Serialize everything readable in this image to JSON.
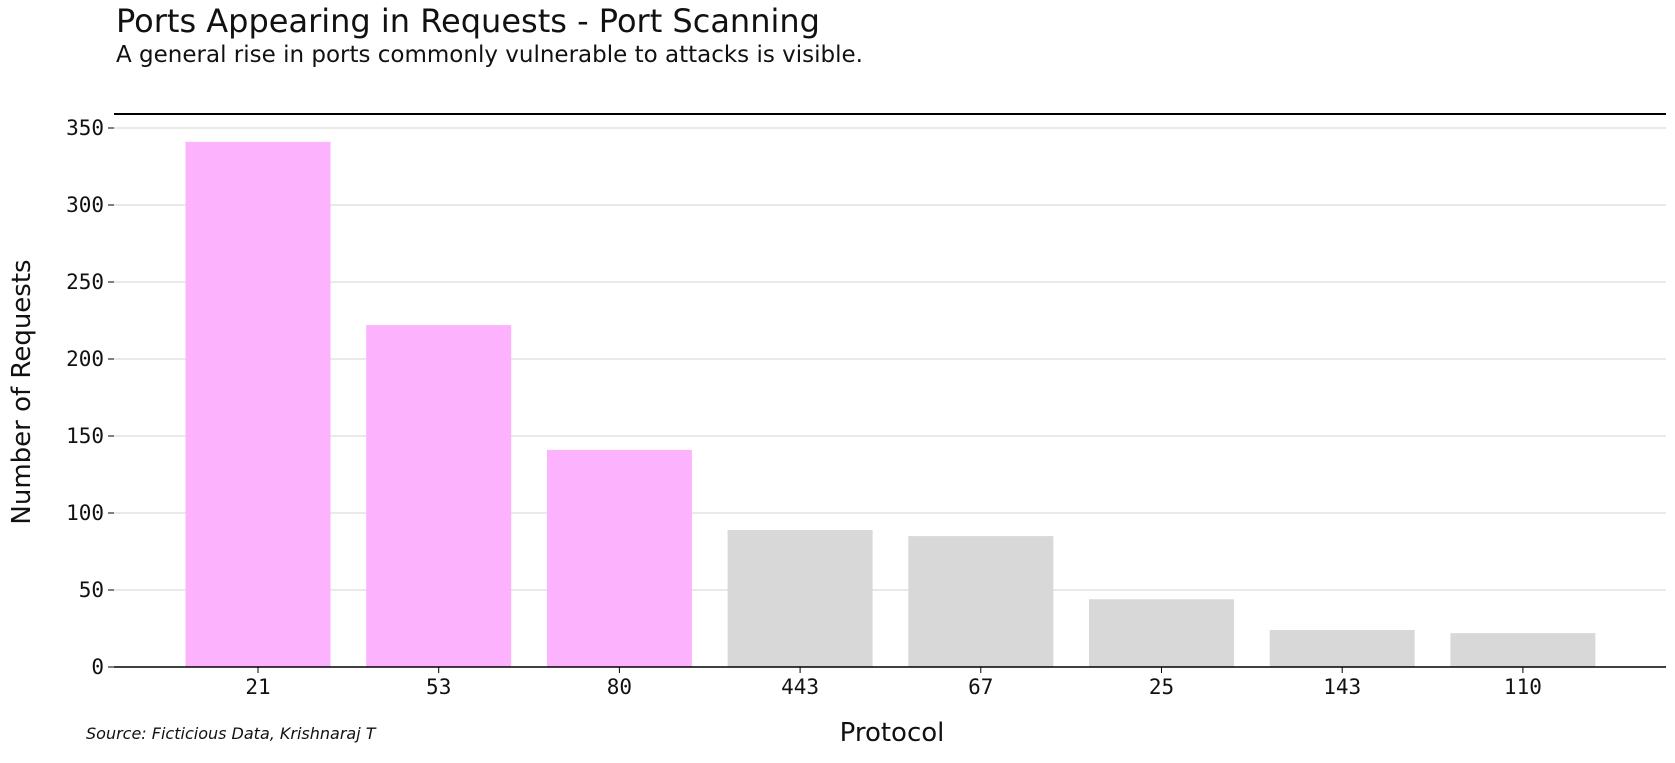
{
  "chart_data": {
    "type": "bar",
    "title": "Ports Appearing in Requests - Port Scanning",
    "subtitle": "A general rise in ports commonly vulnerable to attacks is visible.",
    "xlabel": "Protocol",
    "ylabel": "Number of Requests",
    "source": "Source: Ficticious Data, Krishnaraj T",
    "categories": [
      "21",
      "53",
      "80",
      "443",
      "67",
      "25",
      "143",
      "110"
    ],
    "values": [
      341,
      222,
      141,
      89,
      85,
      44,
      24,
      22
    ],
    "highlighted": [
      true,
      true,
      true,
      false,
      false,
      false,
      false,
      false
    ],
    "ylim": [
      0,
      350
    ],
    "yticks": [
      0,
      50,
      100,
      150,
      200,
      250,
      300,
      350
    ],
    "grid": true,
    "colors": {
      "highlight": "#fdb2fd",
      "muted": "#d8d8d8",
      "grid": "#d3d3d3",
      "axis": "#000000"
    }
  }
}
